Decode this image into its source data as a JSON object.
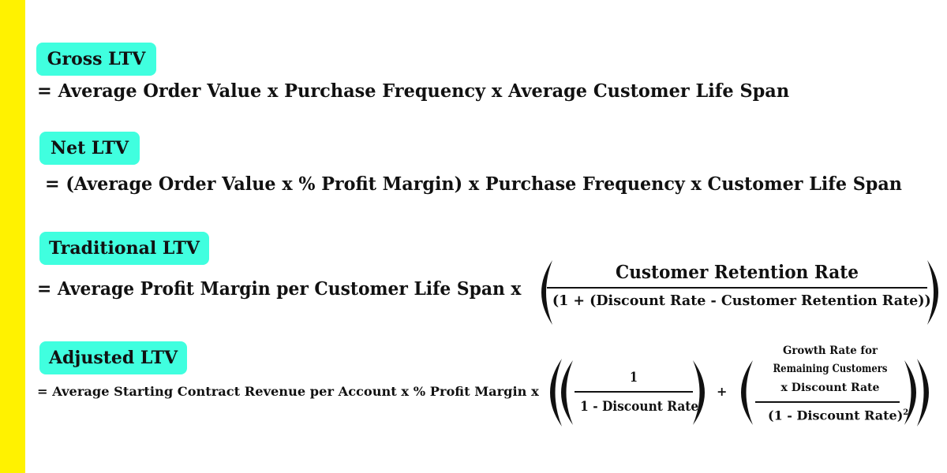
{
  "colors": {
    "accent_strip": "#FFF200",
    "badge": "#40FFDF",
    "text": "#111111"
  },
  "gross": {
    "label": "Gross LTV",
    "formula": "= Average Order Value  x  Purchase Frequency  x  Average Customer Life Span"
  },
  "net": {
    "label": "Net LTV",
    "formula": "= (Average Order Value  x  % Profit Margin) x  Purchase Frequency  x  Customer Life Span"
  },
  "traditional": {
    "label": "Traditional LTV",
    "formula": "= Average Profit Margin per Customer Life Span  x",
    "numerator": "Customer Retention Rate",
    "denominator": "(1 + (Discount Rate - Customer Retention Rate))"
  },
  "adjusted": {
    "label": "Adjusted LTV",
    "formula": "= Average Starting Contract Revenue per Account  x  % Profit Margin x",
    "frac1_numerator": "1",
    "frac1_denominator": "1 - Discount Rate",
    "plus": "+",
    "frac2_numerator_line1": "Growth Rate for",
    "frac2_numerator_line2": "Remaining Customers",
    "frac2_numerator_line3": "x  Discount Rate",
    "frac2_denominator": "(1 - Discount Rate)",
    "frac2_exponent": "2"
  }
}
